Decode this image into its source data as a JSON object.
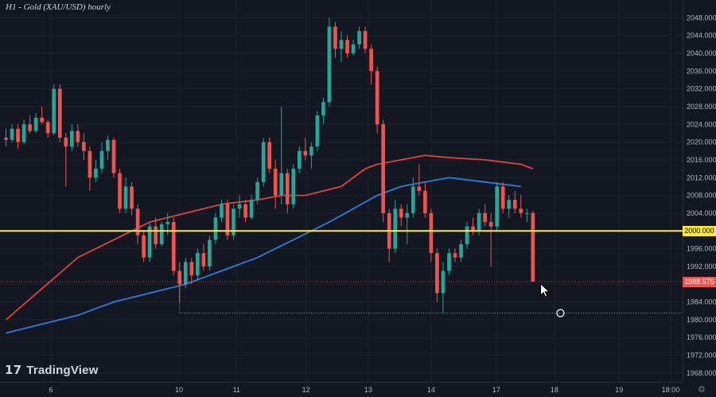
{
  "title": "H1 - Gold (XAU/USD) hourly",
  "brand": {
    "mark": "17",
    "name": "TradingView"
  },
  "colors": {
    "background": "#131722",
    "grid": "#1e222d",
    "axis_text": "#b2b5be",
    "up": "#26a69a",
    "down": "#ef5350",
    "ma_red": "#e0423f",
    "ma_blue": "#2f7be0",
    "level_line": "#ffeb3b",
    "price_badge": "#ef5350"
  },
  "chart_data": {
    "type": "candlestick",
    "title": "H1 - Gold (XAU/USD) hourly",
    "ylim": [
      1966,
      2052
    ],
    "y_ticks": [
      "1968.000",
      "1972.000",
      "1976.000",
      "1980.000",
      "1984.000",
      "1988.000",
      "1992.000",
      "1996.000",
      "2000.000",
      "2004.000",
      "2008.000",
      "2012.000",
      "2016.000",
      "2020.000",
      "2024.000",
      "2028.000",
      "2032.000",
      "2036.000",
      "2040.000",
      "2044.000",
      "2048.000"
    ],
    "x_ticks": [
      "6",
      "10",
      "11",
      "12",
      "13",
      "14",
      "17",
      "18",
      "19",
      "18:00"
    ],
    "x_tick_pos": [
      7.5,
      28.9,
      38.5,
      50.1,
      60.5,
      71.0,
      81.9,
      91.6,
      102.4,
      111.0
    ],
    "grid": true,
    "level_line": {
      "value": 2000.0,
      "label": "2000.000"
    },
    "last_price": {
      "value": 1988.575,
      "label": "1988.575"
    },
    "low_marker": {
      "x": 92.6,
      "value": 1981.5
    },
    "candles": [
      [
        0,
        2021.0,
        2023.0,
        2019.0,
        2020.5
      ],
      [
        1,
        2020.5,
        2024.0,
        2020.0,
        2023.0
      ],
      [
        2,
        2023.0,
        2024.0,
        2018.5,
        2020.0
      ],
      [
        3,
        2020.0,
        2025.0,
        2019.5,
        2024.0
      ],
      [
        4,
        2024.0,
        2026.0,
        2022.0,
        2022.5
      ],
      [
        5,
        2022.5,
        2026.5,
        2022.0,
        2025.5
      ],
      [
        6,
        2025.5,
        2028.0,
        2024.0,
        2024.5
      ],
      [
        7,
        2024.5,
        2025.0,
        2021.0,
        2022.0
      ],
      [
        8,
        2022.0,
        2033.0,
        2021.5,
        2032.0
      ],
      [
        9,
        2032.0,
        2033.0,
        2020.0,
        2021.0
      ],
      [
        10,
        2021.0,
        2022.0,
        2010.0,
        2019.0
      ],
      [
        11,
        2019.0,
        2024.0,
        2018.0,
        2022.5
      ],
      [
        12,
        2022.5,
        2024.0,
        2019.0,
        2020.0
      ],
      [
        13,
        2020.0,
        2022.0,
        2016.0,
        2018.0
      ],
      [
        14,
        2018.0,
        2019.0,
        2009.0,
        2012.0
      ],
      [
        15,
        2012.0,
        2016.0,
        2011.0,
        2014.0
      ],
      [
        16,
        2014.0,
        2020.0,
        2013.0,
        2018.0
      ],
      [
        17,
        2018.0,
        2021.5,
        2016.0,
        2020.5
      ],
      [
        18,
        2020.5,
        2021.0,
        2012.0,
        2013.0
      ],
      [
        19,
        2013.0,
        2014.0,
        2004.0,
        2005.0
      ],
      [
        20,
        2005.0,
        2012.0,
        2004.0,
        2010.0
      ],
      [
        21,
        2010.0,
        2011.0,
        2003.5,
        2005.0
      ],
      [
        22,
        2005.0,
        2006.0,
        1997.0,
        1999.0
      ],
      [
        23,
        1999.0,
        2000.0,
        1993.0,
        1994.0
      ],
      [
        24,
        1994.0,
        2002.0,
        1993.0,
        2001.0
      ],
      [
        25,
        2001.0,
        2003.0,
        1996.0,
        1997.0
      ],
      [
        26,
        1997.0,
        2002.0,
        1996.5,
        2001.5
      ],
      [
        27,
        2001.5,
        2004.0,
        1999.0,
        2002.0
      ],
      [
        28,
        2002.0,
        2003.0,
        1990.0,
        1991.0
      ],
      [
        29,
        1991.0,
        1993.0,
        1984.0,
        1988.0
      ],
      [
        30,
        1988.0,
        1994.0,
        1987.0,
        1993.0
      ],
      [
        31,
        1993.0,
        1994.0,
        1988.0,
        1990.0
      ],
      [
        32,
        1990.0,
        1996.0,
        1989.0,
        1995.0
      ],
      [
        33,
        1995.0,
        1997.0,
        1991.0,
        1992.0
      ],
      [
        34,
        1992.0,
        1999.0,
        1991.0,
        1998.0
      ],
      [
        35,
        1998.0,
        2004.0,
        1997.0,
        2003.0
      ],
      [
        36,
        2003.0,
        2007.0,
        2002.0,
        2006.0
      ],
      [
        37,
        2006.0,
        2007.0,
        1998.0,
        1999.0
      ],
      [
        38,
        1999.0,
        2006.0,
        1998.0,
        2005.0
      ],
      [
        39,
        2005.0,
        2008.0,
        2003.0,
        2006.0
      ],
      [
        40,
        2006.0,
        2007.0,
        2002.0,
        2003.0
      ],
      [
        41,
        2003.0,
        2008.0,
        2002.5,
        2007.0
      ],
      [
        42,
        2007.0,
        2012.0,
        2006.0,
        2011.0
      ],
      [
        43,
        2011.0,
        2021.0,
        2010.0,
        2020.0
      ],
      [
        44,
        2020.0,
        2021.0,
        2013.0,
        2014.0
      ],
      [
        45,
        2014.0,
        2016.0,
        2005.0,
        2008.0
      ],
      [
        46,
        2008.0,
        2028.0,
        2006.0,
        2013.0
      ],
      [
        47,
        2013.0,
        2014.0,
        2004.0,
        2006.0
      ],
      [
        48,
        2006.0,
        2015.0,
        2005.0,
        2014.0
      ],
      [
        49,
        2014.0,
        2019.0,
        2013.0,
        2018.0
      ],
      [
        50,
        2018.0,
        2021.0,
        2016.0,
        2017.0
      ],
      [
        51,
        2017.0,
        2020.0,
        2014.0,
        2019.0
      ],
      [
        52,
        2019.0,
        2027.0,
        2018.0,
        2026.0
      ],
      [
        53,
        2026.0,
        2030.0,
        2024.0,
        2029.0
      ],
      [
        54,
        2029.0,
        2048.0,
        2028.0,
        2046.0
      ],
      [
        55,
        2046.0,
        2047.0,
        2039.0,
        2041.0
      ],
      [
        56,
        2041.0,
        2045.0,
        2038.0,
        2043.0
      ],
      [
        57,
        2043.0,
        2044.0,
        2039.0,
        2040.0
      ],
      [
        58,
        2040.0,
        2043.0,
        2039.5,
        2042.0
      ],
      [
        59,
        2042.0,
        2046.0,
        2041.0,
        2045.0
      ],
      [
        60,
        2045.0,
        2046.0,
        2040.0,
        2041.0
      ],
      [
        61,
        2041.0,
        2042.0,
        2033.0,
        2036.0
      ],
      [
        62,
        2036.0,
        2037.0,
        2022.0,
        2024.0
      ],
      [
        63,
        2024.0,
        2025.0,
        2002.0,
        2004.0
      ],
      [
        64,
        2004.0,
        2005.0,
        1993.0,
        1996.0
      ],
      [
        65,
        1996.0,
        2007.0,
        1995.0,
        2005.0
      ],
      [
        66,
        2005.0,
        2006.0,
        2001.0,
        2003.0
      ],
      [
        67,
        2003.0,
        2006.0,
        1997.0,
        2004.0
      ],
      [
        68,
        2004.0,
        2012.0,
        2003.0,
        2010.0
      ],
      [
        69,
        2010.0,
        2015.0,
        2008.0,
        2009.0
      ],
      [
        70,
        2009.0,
        2011.0,
        2003.0,
        2004.0
      ],
      [
        71,
        2004.0,
        2005.0,
        1993.0,
        1995.0
      ],
      [
        72,
        1995.0,
        1996.0,
        1984.0,
        1986.0
      ],
      [
        73,
        1986.0,
        1993.0,
        1981.5,
        1991.0
      ],
      [
        74,
        1991.0,
        1996.0,
        1990.0,
        1995.0
      ],
      [
        75,
        1995.0,
        1996.0,
        1993.0,
        1994.0
      ],
      [
        76,
        1994.0,
        1998.0,
        1993.0,
        1997.0
      ],
      [
        77,
        1997.0,
        2002.0,
        1996.0,
        2001.0
      ],
      [
        78,
        2001.0,
        2003.0,
        1999.0,
        2000.0
      ],
      [
        79,
        2000.0,
        2005.0,
        1999.0,
        2004.0
      ],
      [
        80,
        2004.0,
        2006.0,
        2001.0,
        2002.0
      ],
      [
        81,
        2002.0,
        2004.0,
        1992.0,
        2001.0
      ],
      [
        82,
        2001.0,
        2011.0,
        2000.0,
        2010.0
      ],
      [
        83,
        2010.0,
        2011.0,
        2004.0,
        2005.0
      ],
      [
        84,
        2005.0,
        2008.0,
        2003.0,
        2007.0
      ],
      [
        85,
        2007.0,
        2009.0,
        2004.0,
        2005.0
      ],
      [
        86,
        2005.0,
        2008.0,
        2003.0,
        2004.0
      ],
      [
        87,
        2004.0,
        2005.0,
        2002.0,
        2004.0
      ],
      [
        88,
        2004.0,
        2004.5,
        1988.5,
        1988.575
      ]
    ],
    "series": [
      {
        "color": "#e0423f",
        "points": [
          [
            0,
            1980
          ],
          [
            6,
            1987
          ],
          [
            12,
            1994
          ],
          [
            18,
            1998
          ],
          [
            24,
            2002
          ],
          [
            30,
            2004
          ],
          [
            36,
            2006
          ],
          [
            42,
            2007
          ],
          [
            46,
            2008
          ],
          [
            50,
            2008
          ],
          [
            56,
            2010
          ],
          [
            60,
            2014
          ],
          [
            62,
            2015
          ],
          [
            66,
            2016
          ],
          [
            70,
            2017
          ],
          [
            74,
            2016.5
          ],
          [
            80,
            2016
          ],
          [
            86,
            2015
          ],
          [
            88,
            2014
          ]
        ]
      },
      {
        "color": "#2f7be0",
        "points": [
          [
            0,
            1977
          ],
          [
            6,
            1979
          ],
          [
            12,
            1981
          ],
          [
            18,
            1984
          ],
          [
            24,
            1986
          ],
          [
            30,
            1988
          ],
          [
            36,
            1991
          ],
          [
            42,
            1994
          ],
          [
            48,
            1998
          ],
          [
            54,
            2002
          ],
          [
            58,
            2005
          ],
          [
            62,
            2008
          ],
          [
            66,
            2010
          ],
          [
            70,
            2011
          ],
          [
            74,
            2012
          ],
          [
            80,
            2011
          ],
          [
            86,
            2010
          ]
        ]
      }
    ]
  }
}
